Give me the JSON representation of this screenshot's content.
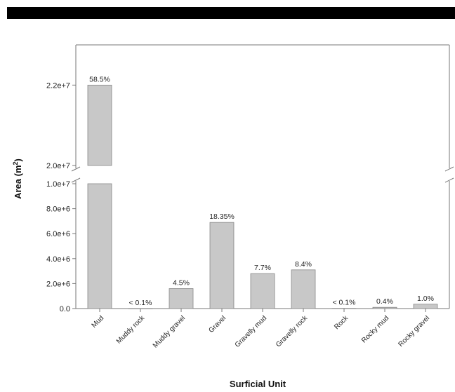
{
  "chart_data": {
    "type": "bar",
    "title": "",
    "xlabel": "Surficial Unit",
    "ylabel": "Area (m",
    "ylabel_sup": "2",
    "ylabel_close": ")",
    "axis_break": true,
    "ylim_lower": [
      0,
      10000000
    ],
    "ylim_upper": [
      20000000,
      23000000
    ],
    "yticks_lower": [
      {
        "value": 0,
        "label": "0.0"
      },
      {
        "value": 2000000,
        "label": "2.0e+6"
      },
      {
        "value": 4000000,
        "label": "4.0e+6"
      },
      {
        "value": 6000000,
        "label": "6.0e+6"
      },
      {
        "value": 8000000,
        "label": "8.0e+6"
      },
      {
        "value": 10000000,
        "label": "1.0e+7"
      }
    ],
    "yticks_upper": [
      {
        "value": 20000000,
        "label": "2.0e+7"
      },
      {
        "value": 22000000,
        "label": "2.2e+7"
      }
    ],
    "categories": [
      "Mud",
      "Muddy rock",
      "Muddy gravel",
      "Gravel",
      "Gravelly mud",
      "Gravelly rock",
      "Rock",
      "Rocky mud",
      "Rocky gravel"
    ],
    "values": [
      22000000,
      5000,
      1600000,
      6900000,
      2800000,
      3100000,
      20000,
      100000,
      350000
    ],
    "data_labels": [
      "58.5%",
      "< 0.1%",
      "4.5%",
      "18.35%",
      "7.7%",
      "8.4%",
      "< 0.1%",
      "0.4%",
      "1.0%"
    ],
    "bar_color": "#c8c8c8",
    "grid": false
  }
}
